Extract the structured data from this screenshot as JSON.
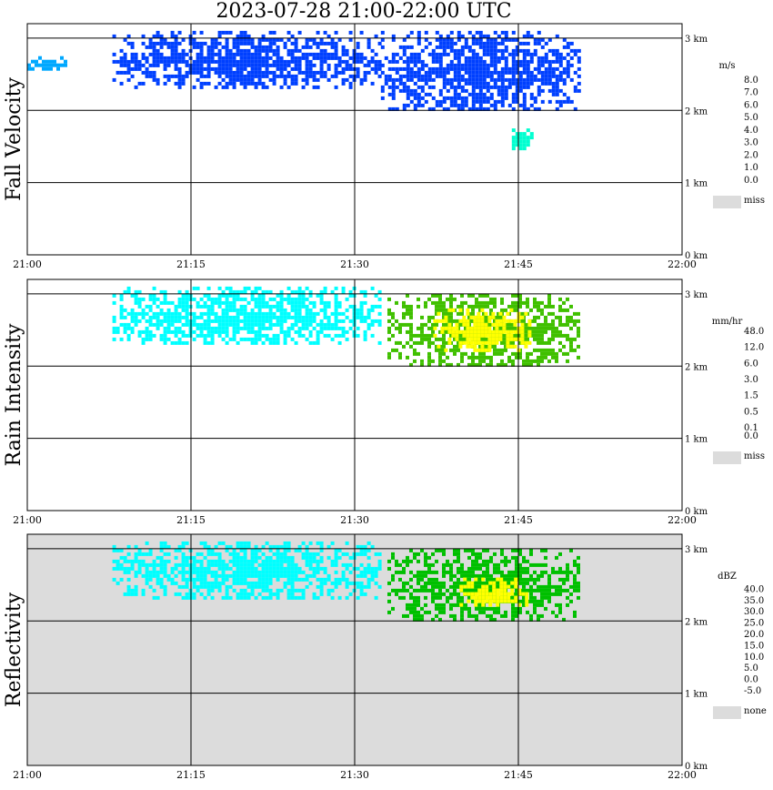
{
  "title": "2023-07-28   21:00-22:00 UTC",
  "chart_data": [
    {
      "type": "heatmap",
      "ylabel": "Fall Velocity",
      "x_ticks": [
        "21:00",
        "21:15",
        "21:30",
        "21:45",
        "22:00"
      ],
      "y_ticks": [
        "0 km",
        "1 km",
        "2 km",
        "3 km"
      ],
      "xlim": [
        "21:00",
        "22:00"
      ],
      "ylim_km": [
        0,
        3.2
      ],
      "grid": true,
      "background": "#ffffff",
      "legend": {
        "unit": "m/s",
        "levels": [
          {
            "label": "8.0",
            "color": "#ff00ff"
          },
          {
            "label": "7.0",
            "color": "#ff0000"
          },
          {
            "label": "6.0",
            "color": "#ff8000"
          },
          {
            "label": "5.0",
            "color": "#ffff00"
          },
          {
            "label": "4.0",
            "color": "#00c000"
          },
          {
            "label": "3.0",
            "color": "#00ffd0"
          },
          {
            "label": "2.0",
            "color": "#00a8ff"
          },
          {
            "label": "1.0",
            "color": "#0040ff"
          },
          {
            "label": "0.0",
            "color": "#0000c0"
          }
        ],
        "missing": {
          "label": "miss",
          "color": "#dcdcdc"
        }
      },
      "echo_regions": [
        {
          "t": [
            21.0,
            21.06
          ],
          "z": [
            2.55,
            2.75
          ],
          "level": "2.0"
        },
        {
          "t": [
            21.13,
            21.54
          ],
          "z": [
            2.3,
            3.1
          ],
          "level": "1.0"
        },
        {
          "t": [
            21.54,
            21.84
          ],
          "z": [
            2.0,
            3.1
          ],
          "level": "1.0"
        },
        {
          "t": [
            21.74,
            21.77
          ],
          "z": [
            1.45,
            1.75
          ],
          "level": "3.0"
        }
      ]
    },
    {
      "type": "heatmap",
      "ylabel": "Rain Intensity",
      "x_ticks": [
        "21:00",
        "21:15",
        "21:30",
        "21:45",
        "22:00"
      ],
      "y_ticks": [
        "0 km",
        "1 km",
        "2 km",
        "3 km"
      ],
      "xlim": [
        "21:00",
        "22:00"
      ],
      "ylim_km": [
        0,
        3.2
      ],
      "grid": true,
      "background": "#ffffff",
      "legend": {
        "unit": "mm/hr",
        "levels": [
          {
            "label": "48.0",
            "color": "#000000"
          },
          {
            "label": "",
            "color": "#800060"
          },
          {
            "label": "12.0",
            "color": "#c000c0"
          },
          {
            "label": "",
            "color": "#ff40ff"
          },
          {
            "label": "6.0",
            "color": "#ff0040"
          },
          {
            "label": "",
            "color": "#ff8000"
          },
          {
            "label": "3.0",
            "color": "#ffff00"
          },
          {
            "label": "",
            "color": "#a0ff40"
          },
          {
            "label": "1.5",
            "color": "#40c000"
          },
          {
            "label": "",
            "color": "#0000c0"
          },
          {
            "label": "0.5",
            "color": "#0060ff"
          },
          {
            "label": "",
            "color": "#00b0ff"
          },
          {
            "label": "0.1",
            "color": "#00ffff"
          },
          {
            "label": "0.0",
            "color": "#ffffff"
          }
        ],
        "missing": {
          "label": "miss",
          "color": "#dcdcdc"
        }
      },
      "echo_regions": [
        {
          "t": [
            21.13,
            21.54
          ],
          "z": [
            2.3,
            3.1
          ],
          "level": "0.1"
        },
        {
          "t": [
            21.55,
            21.84
          ],
          "z": [
            2.0,
            3.0
          ],
          "level": "1.5"
        },
        {
          "t": [
            21.62,
            21.77
          ],
          "z": [
            2.2,
            2.8
          ],
          "level": "3.0"
        }
      ]
    },
    {
      "type": "heatmap",
      "ylabel": "Reflectivity",
      "x_ticks": [
        "21:00",
        "21:15",
        "21:30",
        "21:45",
        "22:00"
      ],
      "y_ticks": [
        "0 km",
        "1 km",
        "2 km",
        "3 km"
      ],
      "xlim": [
        "21:00",
        "22:00"
      ],
      "ylim_km": [
        0,
        3.2
      ],
      "grid": true,
      "background": "#dcdcdc",
      "legend": {
        "unit": "dBZ",
        "levels": [
          {
            "label": "40.0",
            "color": "#b040b0"
          },
          {
            "label": "35.0",
            "color": "#c000c0"
          },
          {
            "label": "30.0",
            "color": "#ff0000"
          },
          {
            "label": "25.0",
            "color": "#ff8000"
          },
          {
            "label": "20.0",
            "color": "#ffff00"
          },
          {
            "label": "15.0",
            "color": "#00c000"
          },
          {
            "label": "10.0",
            "color": "#00ffff"
          },
          {
            "label": "5.0",
            "color": "#00b0ff"
          },
          {
            "label": "0.0",
            "color": "#0000c0"
          },
          {
            "label": "-5.0",
            "color": "#ffffff"
          }
        ],
        "missing": {
          "label": "none",
          "color": "#dcdcdc"
        }
      },
      "echo_regions": [
        {
          "t": [
            21.13,
            21.54
          ],
          "z": [
            2.3,
            3.1
          ],
          "level": "10.0"
        },
        {
          "t": [
            21.55,
            21.84
          ],
          "z": [
            2.0,
            3.0
          ],
          "level": "15.0"
        },
        {
          "t": [
            21.66,
            21.76
          ],
          "z": [
            2.2,
            2.6
          ],
          "level": "20.0"
        }
      ]
    }
  ]
}
